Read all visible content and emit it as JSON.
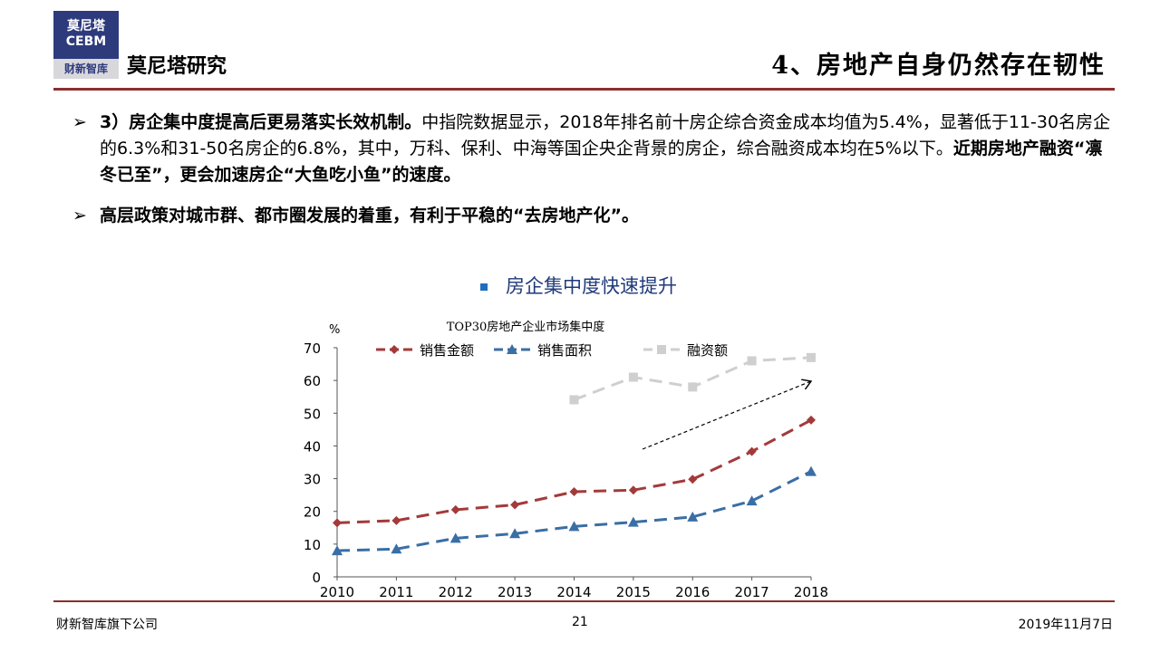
{
  "header": {
    "logo_line1": "莫尼塔",
    "logo_line2": "CEBM",
    "logo_line3": "财新智库",
    "brand": "莫尼塔研究",
    "title": "4、房地产自身仍然存在韧性"
  },
  "bullets": [
    {
      "marker": "➢",
      "bold": "3）房企集中度提高后更易落实长效机制。",
      "text1": "中指院数据显示，2018年排名前十房企综合资金成本均值为5.4%，显著低于11-30名房企的6.3%和31-50名房企的6.8%，其中，万科、保利、中海等国企央企背景的房企，综合融资成本均在5%以下。",
      "bold2": "近期房地产融资“凛冬已至”，更会加速房企“大鱼吃小鱼”的速度。"
    },
    {
      "marker": "➢",
      "bold": "高层政策对城市群、都市圈发展的着重，有利于平稳的“去房地产化”。",
      "text1": "",
      "bold2": ""
    }
  ],
  "section_heading": "房企集中度快速提升",
  "chart_data": {
    "type": "line",
    "title": "TOP30房地产企业市场集中度",
    "ylabel": "%",
    "categories": [
      "2010",
      "2011",
      "2012",
      "2013",
      "2014",
      "2015",
      "2016",
      "2017",
      "2018"
    ],
    "ylim": [
      0,
      70
    ],
    "yticks": [
      "0",
      "10",
      "20",
      "30",
      "40",
      "50",
      "60",
      "70"
    ],
    "legend_position": "top",
    "series": [
      {
        "name": "销售金额",
        "color": "#a33a3a",
        "marker": "diamond",
        "values": [
          16.5,
          17.2,
          20.5,
          22,
          26,
          26.5,
          29.8,
          38.3,
          47.9
        ]
      },
      {
        "name": "销售面积",
        "color": "#3a6ea5",
        "marker": "triangle",
        "values": [
          8,
          8.5,
          11.8,
          13.2,
          15.4,
          16.7,
          18.3,
          23.2,
          32.2
        ]
      },
      {
        "name": "融资额",
        "color": "#cfcfcf",
        "marker": "square",
        "values": [
          null,
          null,
          null,
          null,
          54.1,
          61,
          58,
          66,
          67
        ]
      }
    ]
  },
  "footer": {
    "left": "财新智库旗下公司",
    "page": "21",
    "date": "2019年11月7日"
  }
}
